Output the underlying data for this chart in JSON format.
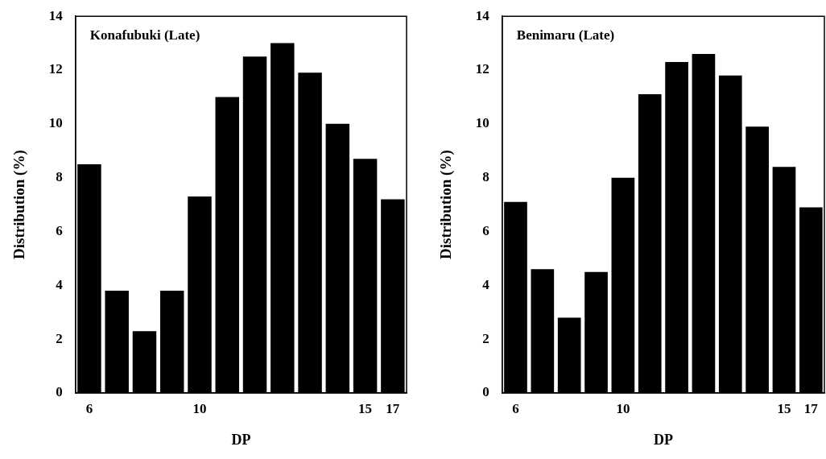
{
  "chart_data": [
    {
      "type": "bar",
      "title": "Konafubuki (Late)",
      "xlabel": "DP",
      "ylabel": "Distribution (%)",
      "categories": [
        "6",
        null,
        null,
        null,
        "10",
        null,
        null,
        null,
        null,
        null,
        "15",
        "17"
      ],
      "values": [
        8.5,
        3.8,
        2.3,
        3.8,
        7.3,
        11.0,
        12.5,
        13.0,
        11.9,
        10.0,
        8.7,
        7.2
      ],
      "color": "#000000",
      "ylim": [
        0,
        14
      ],
      "yticks": [
        0,
        2,
        4,
        6,
        8,
        10,
        12,
        14
      ]
    },
    {
      "type": "bar",
      "title": "Benimaru (Late)",
      "xlabel": "DP",
      "ylabel": "Distribution (%)",
      "categories": [
        "6",
        null,
        null,
        null,
        "10",
        null,
        null,
        null,
        null,
        null,
        "15",
        "17"
      ],
      "values": [
        7.1,
        4.6,
        2.8,
        4.5,
        8.0,
        11.1,
        12.3,
        12.6,
        11.8,
        9.9,
        8.4,
        6.9
      ],
      "color": "#000000",
      "ylim": [
        0,
        14
      ],
      "yticks": [
        0,
        2,
        4,
        6,
        8,
        10,
        12,
        14
      ]
    }
  ]
}
